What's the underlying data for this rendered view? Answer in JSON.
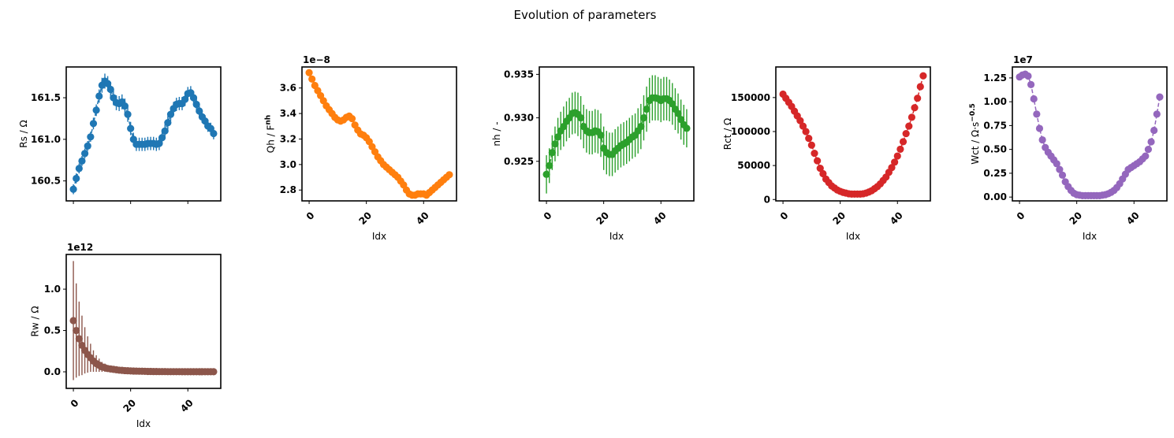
{
  "figure": {
    "title": "Evolution of parameters"
  },
  "chart_data": [
    {
      "type": "scatter",
      "title": "",
      "xlabel": "",
      "ylabel": "Rs / Ω",
      "color": "#1f77b4",
      "show_xtick_labels": false,
      "offset_text": "",
      "connect": true,
      "xlim": [
        -2.5,
        51.5
      ],
      "ylim": [
        160.26,
        161.87
      ],
      "xticks": [
        0,
        20,
        40
      ],
      "yticks": [
        160.5,
        161.0,
        161.5
      ],
      "ytick_labels": [
        "160.5",
        "161.0",
        "161.5"
      ],
      "x": [
        0,
        1,
        2,
        3,
        4,
        5,
        6,
        7,
        8,
        9,
        10,
        11,
        12,
        13,
        14,
        15,
        16,
        17,
        18,
        19,
        20,
        21,
        22,
        23,
        24,
        25,
        26,
        27,
        28,
        29,
        30,
        31,
        32,
        33,
        34,
        35,
        36,
        37,
        38,
        39,
        40,
        41,
        42,
        43,
        44,
        45,
        46,
        47,
        48,
        49
      ],
      "y": [
        160.4,
        160.53,
        160.65,
        160.74,
        160.83,
        160.92,
        161.03,
        161.19,
        161.35,
        161.52,
        161.65,
        161.7,
        161.67,
        161.6,
        161.5,
        161.44,
        161.43,
        161.45,
        161.4,
        161.3,
        161.13,
        161.0,
        160.94,
        160.94,
        160.94,
        160.94,
        160.95,
        160.95,
        160.95,
        160.94,
        160.95,
        161.02,
        161.1,
        161.2,
        161.3,
        161.37,
        161.42,
        161.43,
        161.43,
        161.48,
        161.55,
        161.56,
        161.5,
        161.42,
        161.34,
        161.27,
        161.22,
        161.16,
        161.13,
        161.07
      ],
      "yerr": [
        0.06,
        0.06,
        0.06,
        0.06,
        0.06,
        0.06,
        0.06,
        0.07,
        0.07,
        0.08,
        0.09,
        0.09,
        0.09,
        0.09,
        0.09,
        0.09,
        0.09,
        0.09,
        0.09,
        0.09,
        0.08,
        0.08,
        0.08,
        0.08,
        0.08,
        0.08,
        0.08,
        0.08,
        0.08,
        0.08,
        0.08,
        0.08,
        0.08,
        0.08,
        0.08,
        0.08,
        0.08,
        0.08,
        0.08,
        0.08,
        0.08,
        0.08,
        0.08,
        0.08,
        0.08,
        0.07,
        0.07,
        0.07,
        0.07,
        0.07
      ]
    },
    {
      "type": "scatter",
      "title": "",
      "xlabel": "Idx",
      "ylabel": "Qh / F^nh",
      "color": "#ff7f0e",
      "show_xtick_labels": true,
      "offset_text": "1e−8",
      "connect": true,
      "xlim": [
        -2.5,
        51.5
      ],
      "ylim": [
        2.715,
        3.765
      ],
      "xticks": [
        0,
        20,
        40
      ],
      "yticks": [
        2.8,
        3.0,
        3.2,
        3.4,
        3.6
      ],
      "ytick_labels": [
        "2.8",
        "3.0",
        "3.2",
        "3.4",
        "3.6"
      ],
      "x": [
        0,
        1,
        2,
        3,
        4,
        5,
        6,
        7,
        8,
        9,
        10,
        11,
        12,
        13,
        14,
        15,
        16,
        17,
        18,
        19,
        20,
        21,
        22,
        23,
        24,
        25,
        26,
        27,
        28,
        29,
        30,
        31,
        32,
        33,
        34,
        35,
        36,
        37,
        38,
        39,
        40,
        41,
        42,
        43,
        44,
        45,
        46,
        47,
        48,
        49
      ],
      "y": [
        3.72,
        3.67,
        3.62,
        3.58,
        3.54,
        3.5,
        3.46,
        3.43,
        3.4,
        3.37,
        3.35,
        3.34,
        3.35,
        3.37,
        3.38,
        3.36,
        3.31,
        3.27,
        3.24,
        3.23,
        3.21,
        3.18,
        3.14,
        3.1,
        3.06,
        3.03,
        3.0,
        2.98,
        2.96,
        2.94,
        2.92,
        2.9,
        2.87,
        2.84,
        2.8,
        2.77,
        2.76,
        2.76,
        2.77,
        2.77,
        2.77,
        2.76,
        2.78,
        2.8,
        2.82,
        2.84,
        2.86,
        2.88,
        2.9,
        2.92
      ],
      "yerr": []
    },
    {
      "type": "scatter",
      "title": "",
      "xlabel": "Idx",
      "ylabel": "nh / -",
      "color": "#2ca02c",
      "show_xtick_labels": true,
      "offset_text": "",
      "connect": true,
      "xlim": [
        -2.5,
        51.5
      ],
      "ylim": [
        0.92045,
        0.93585
      ],
      "xticks": [
        0,
        20,
        40
      ],
      "yticks": [
        0.925,
        0.93,
        0.935
      ],
      "ytick_labels": [
        "0.925",
        "0.930",
        "0.935"
      ],
      "x": [
        0,
        1,
        2,
        3,
        4,
        5,
        6,
        7,
        8,
        9,
        10,
        11,
        12,
        13,
        14,
        15,
        16,
        17,
        18,
        19,
        20,
        21,
        22,
        23,
        24,
        25,
        26,
        27,
        28,
        29,
        30,
        31,
        32,
        33,
        34,
        35,
        36,
        37,
        38,
        39,
        40,
        41,
        42,
        43,
        44,
        45,
        46,
        47,
        48,
        49
      ],
      "y": [
        0.9235,
        0.9245,
        0.926,
        0.927,
        0.9278,
        0.9285,
        0.929,
        0.9296,
        0.93,
        0.9305,
        0.9306,
        0.9304,
        0.93,
        0.929,
        0.9285,
        0.9283,
        0.9283,
        0.9285,
        0.9284,
        0.928,
        0.9265,
        0.926,
        0.9258,
        0.9258,
        0.9262,
        0.9265,
        0.9268,
        0.927,
        0.9272,
        0.9275,
        0.9278,
        0.928,
        0.9285,
        0.929,
        0.93,
        0.931,
        0.932,
        0.9323,
        0.9323,
        0.9322,
        0.932,
        0.9322,
        0.9322,
        0.932,
        0.9316,
        0.931,
        0.9305,
        0.9298,
        0.9292,
        0.9288
      ],
      "yerr": [
        0.0022,
        0.002,
        0.002,
        0.002,
        0.0022,
        0.0022,
        0.0023,
        0.0023,
        0.0023,
        0.0024,
        0.0024,
        0.0025,
        0.0025,
        0.0025,
        0.0025,
        0.0025,
        0.0025,
        0.0025,
        0.0025,
        0.0025,
        0.0025,
        0.0025,
        0.0025,
        0.0025,
        0.0025,
        0.0025,
        0.0025,
        0.0025,
        0.0025,
        0.0025,
        0.0025,
        0.0025,
        0.0026,
        0.0026,
        0.0026,
        0.0026,
        0.0026,
        0.0026,
        0.0026,
        0.0025,
        0.0025,
        0.0025,
        0.0025,
        0.0024,
        0.0024,
        0.0024,
        0.0023,
        0.0023,
        0.0023,
        0.0022
      ]
    },
    {
      "type": "scatter",
      "title": "",
      "xlabel": "Idx",
      "ylabel": "Rct / Ω",
      "color": "#d62728",
      "show_xtick_labels": true,
      "offset_text": "",
      "connect": true,
      "xlim": [
        -2.5,
        51.5
      ],
      "ylim": [
        -2000,
        195000
      ],
      "xticks": [
        0,
        20,
        40
      ],
      "yticks": [
        0,
        50000,
        100000,
        150000
      ],
      "ytick_labels": [
        "0",
        "50000",
        "100000",
        "150000"
      ],
      "x": [
        0,
        1,
        2,
        3,
        4,
        5,
        6,
        7,
        8,
        9,
        10,
        11,
        12,
        13,
        14,
        15,
        16,
        17,
        18,
        19,
        20,
        21,
        22,
        23,
        24,
        25,
        26,
        27,
        28,
        29,
        30,
        31,
        32,
        33,
        34,
        35,
        36,
        37,
        38,
        39,
        40,
        41,
        42,
        43,
        44,
        45,
        46,
        47,
        48,
        49
      ],
      "y": [
        155000,
        149000,
        143000,
        137000,
        130000,
        123000,
        116000,
        108000,
        100000,
        90000,
        80000,
        68000,
        57000,
        46000,
        38000,
        30000,
        25000,
        20000,
        17000,
        14000,
        12000,
        10500,
        9500,
        8500,
        8000,
        8000,
        8000,
        8000,
        8500,
        9500,
        11000,
        13000,
        16000,
        19000,
        23000,
        28000,
        33000,
        40000,
        47000,
        55000,
        64000,
        74000,
        85000,
        97000,
        108000,
        121000,
        135000,
        149000,
        166000,
        182000
      ],
      "yerr": []
    },
    {
      "type": "scatter",
      "title": "",
      "xlabel": "Idx",
      "ylabel": "Wct / Ω·s^−0.5",
      "color": "#9467bd",
      "show_xtick_labels": true,
      "offset_text": "1e7",
      "connect": true,
      "xlim": [
        -2.5,
        51.5
      ],
      "ylim": [
        -0.04,
        1.365
      ],
      "xticks": [
        0,
        20,
        40
      ],
      "yticks": [
        0.0,
        0.25,
        0.5,
        0.75,
        1.0,
        1.25
      ],
      "ytick_labels": [
        "0.00",
        "0.25",
        "0.50",
        "0.75",
        "1.00",
        "1.25"
      ],
      "x": [
        0,
        1,
        2,
        3,
        4,
        5,
        6,
        7,
        8,
        9,
        10,
        11,
        12,
        13,
        14,
        15,
        16,
        17,
        18,
        19,
        20,
        21,
        22,
        23,
        24,
        25,
        26,
        27,
        28,
        29,
        30,
        31,
        32,
        33,
        34,
        35,
        36,
        37,
        38,
        39,
        40,
        41,
        42,
        43,
        44,
        45,
        46,
        47,
        48,
        49
      ],
      "y": [
        1.26,
        1.28,
        1.29,
        1.27,
        1.18,
        1.03,
        0.87,
        0.72,
        0.6,
        0.52,
        0.47,
        0.43,
        0.39,
        0.35,
        0.29,
        0.23,
        0.16,
        0.11,
        0.07,
        0.04,
        0.025,
        0.02,
        0.015,
        0.015,
        0.015,
        0.015,
        0.015,
        0.015,
        0.015,
        0.02,
        0.025,
        0.035,
        0.05,
        0.07,
        0.1,
        0.14,
        0.19,
        0.24,
        0.29,
        0.31,
        0.33,
        0.35,
        0.37,
        0.4,
        0.43,
        0.5,
        0.58,
        0.7,
        0.87,
        1.05
      ],
      "yerr": []
    },
    {
      "type": "scatter",
      "title": "",
      "xlabel": "Idx",
      "ylabel": "Rw / Ω",
      "color": "#8c564b",
      "show_xtick_labels": true,
      "offset_text": "1e12",
      "connect": false,
      "xlim": [
        -2.5,
        51.5
      ],
      "ylim": [
        -0.2,
        1.42
      ],
      "xticks": [
        0,
        20,
        40
      ],
      "yticks": [
        0.0,
        0.5,
        1.0
      ],
      "ytick_labels": [
        "0.0",
        "0.5",
        "1.0"
      ],
      "x": [
        0,
        1,
        2,
        3,
        4,
        5,
        6,
        7,
        8,
        9,
        10,
        11,
        12,
        13,
        14,
        15,
        16,
        17,
        18,
        19,
        20,
        21,
        22,
        23,
        24,
        25,
        26,
        27,
        28,
        29,
        30,
        31,
        32,
        33,
        34,
        35,
        36,
        37,
        38,
        39,
        40,
        41,
        42,
        43,
        44,
        45,
        46,
        47,
        48,
        49
      ],
      "y": [
        0.62,
        0.5,
        0.4,
        0.32,
        0.26,
        0.21,
        0.17,
        0.13,
        0.1,
        0.08,
        0.06,
        0.05,
        0.04,
        0.035,
        0.03,
        0.025,
        0.02,
        0.018,
        0.015,
        0.013,
        0.011,
        0.01,
        0.009,
        0.008,
        0.007,
        0.006,
        0.005,
        0.005,
        0.004,
        0.004,
        0.003,
        0.003,
        0.003,
        0.002,
        0.002,
        0.002,
        0.002,
        0.002,
        0.001,
        0.001,
        0.001,
        0.001,
        0.001,
        0.001,
        0.001,
        0.001,
        0.001,
        0.001,
        0.001,
        0.001
      ],
      "yerr": [
        0.72,
        0.57,
        0.45,
        0.36,
        0.28,
        0.22,
        0.17,
        0.13,
        0.1,
        0.08,
        0.06,
        0.05,
        0.04,
        0.035,
        0.03,
        0.025,
        0.02,
        0.018,
        0.015,
        0.013,
        0.011,
        0.01,
        0.009,
        0.008,
        0.007,
        0.006,
        0.005,
        0.005,
        0.004,
        0.004,
        0.003,
        0.003,
        0.003,
        0.002,
        0.002,
        0.002,
        0.002,
        0.002,
        0.001,
        0.001,
        0.001,
        0.001,
        0.001,
        0.001,
        0.001,
        0.001,
        0.001,
        0.001,
        0.001,
        0.001
      ]
    }
  ]
}
